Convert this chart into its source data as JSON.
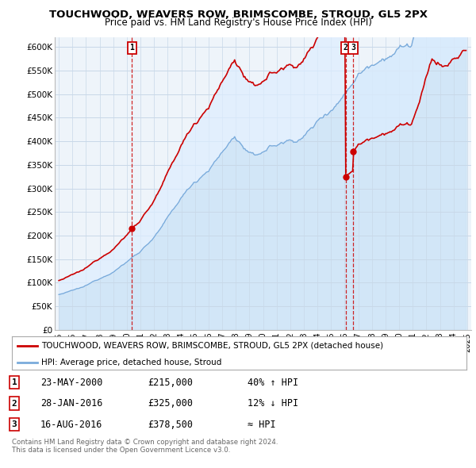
{
  "title": "TOUCHWOOD, WEAVERS ROW, BRIMSCOMBE, STROUD, GL5 2PX",
  "subtitle": "Price paid vs. HM Land Registry's House Price Index (HPI)",
  "legend_line1": "TOUCHWOOD, WEAVERS ROW, BRIMSCOMBE, STROUD, GL5 2PX (detached house)",
  "legend_line2": "HPI: Average price, detached house, Stroud",
  "transactions": [
    {
      "num": 1,
      "date": "23-MAY-2000",
      "price": 215000,
      "hpi_rel": "40% ↑ HPI",
      "year": 2000.38
    },
    {
      "num": 2,
      "date": "28-JAN-2016",
      "price": 325000,
      "hpi_rel": "12% ↓ HPI",
      "year": 2016.07
    },
    {
      "num": 3,
      "date": "16-AUG-2016",
      "price": 378500,
      "hpi_rel": "≈ HPI",
      "year": 2016.62
    }
  ],
  "footer1": "Contains HM Land Registry data © Crown copyright and database right 2024.",
  "footer2": "This data is licensed under the Open Government Licence v3.0.",
  "ylim": [
    0,
    620000
  ],
  "yticks": [
    0,
    50000,
    100000,
    150000,
    200000,
    250000,
    300000,
    350000,
    400000,
    450000,
    500000,
    550000,
    600000
  ],
  "price_line_color": "#cc0000",
  "hpi_line_color": "#7aabdb",
  "fill_color": "#ddeeff",
  "vline_color": "#cc0000",
  "bg_color": "#ffffff",
  "grid_color": "#cccccc"
}
